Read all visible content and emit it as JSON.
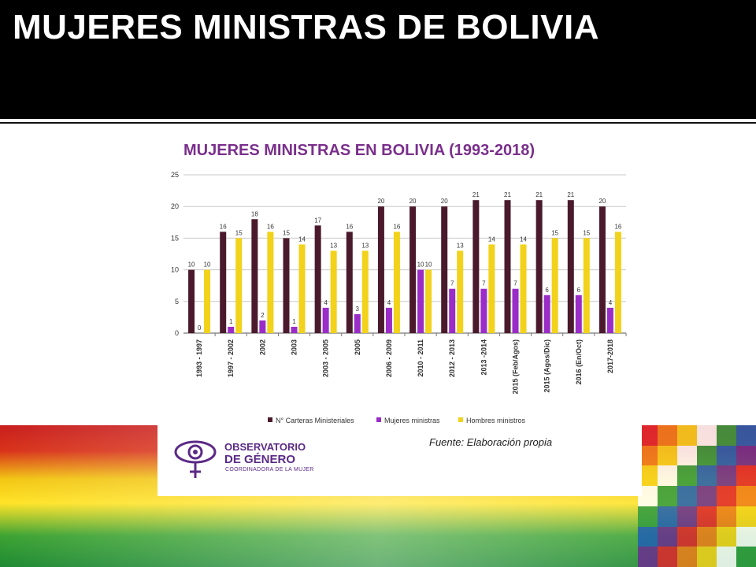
{
  "slide": {
    "title": "MUJERES MINISTRAS DE BOLIVIA"
  },
  "logo": {
    "line1": "OBSERVATORIO",
    "line2": "DE GÉNERO",
    "line3": "COORDINADORA DE LA MUJER"
  },
  "source": "Fuente: Elaboración propia",
  "colors": {
    "cartera": "#4a1a2c",
    "mujeres": "#9a2cc7",
    "hombres": "#f2d21a",
    "title": "#7a2f8c"
  },
  "chart_data": {
    "type": "bar",
    "title": "MUJERES MINISTRAS EN BOLIVIA (1993-2018)",
    "xlabel": "",
    "ylabel": "",
    "ylim": [
      0,
      25
    ],
    "yticks": [
      0,
      5,
      10,
      15,
      20,
      25
    ],
    "grid": true,
    "legend_position": "bottom",
    "categories": [
      "1993 - 1997",
      "1997 - 2002",
      "2002",
      "2003",
      "2003 - 2005",
      "2005",
      "2006 - 2009",
      "2010 - 2011",
      "2012 - 2013",
      "2013 -2014",
      "2015 (Feb/Agos)",
      "2015 (Agos/Dic)",
      "2016 (En/Oct)",
      "2017-2018"
    ],
    "series": [
      {
        "name": "N° Carteras Ministeriales",
        "values": [
          10,
          16,
          18,
          15,
          17,
          16,
          20,
          20,
          20,
          21,
          21,
          21,
          21,
          20
        ]
      },
      {
        "name": "Mujeres ministras",
        "values": [
          0,
          1,
          2,
          1,
          4,
          3,
          4,
          10,
          7,
          7,
          7,
          6,
          6,
          4
        ]
      },
      {
        "name": "Hombres ministros",
        "values": [
          10,
          15,
          16,
          14,
          13,
          13,
          16,
          10,
          13,
          14,
          14,
          15,
          15,
          16
        ]
      }
    ]
  }
}
